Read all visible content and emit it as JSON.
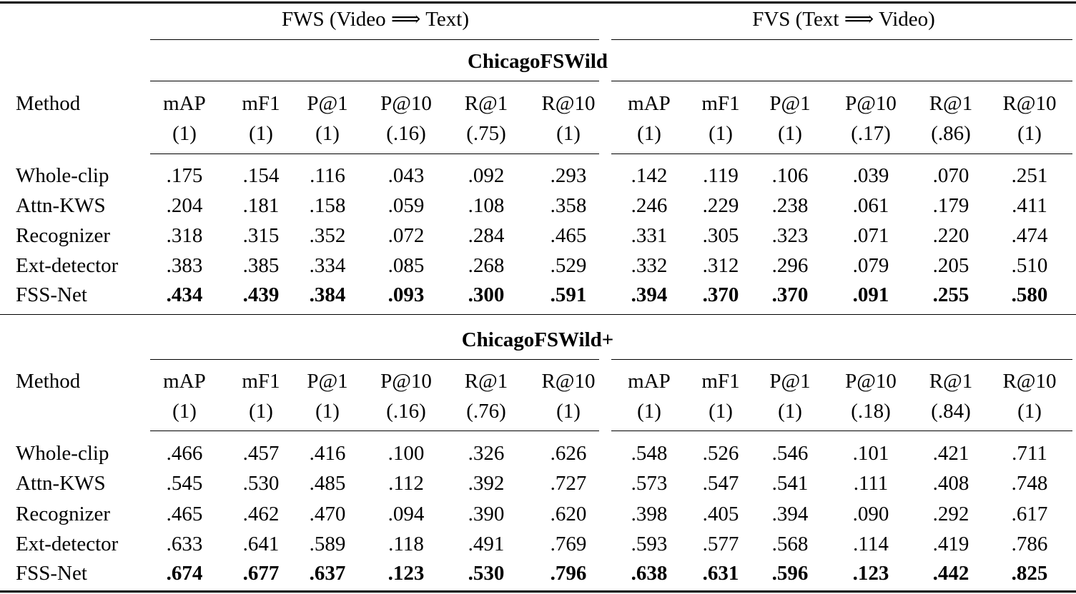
{
  "groups": {
    "fws": "FWS (Video ⟹ Text)",
    "fvs": "FVS (Text ⟹ Video)"
  },
  "method_header": "Method",
  "metrics": [
    "mAP",
    "mF1",
    "P@1",
    "P@10",
    "R@1",
    "R@10"
  ],
  "sections": [
    {
      "title": "ChicagoFSWild",
      "upper_bounds": {
        "fws": [
          "(1)",
          "(1)",
          "(1)",
          "(.16)",
          "(.75)",
          "(1)"
        ],
        "fvs": [
          "(1)",
          "(1)",
          "(1)",
          "(.17)",
          "(.86)",
          "(1)"
        ]
      },
      "rows": [
        {
          "method": "Whole-clip",
          "bold": false,
          "fws": [
            ".175",
            ".154",
            ".116",
            ".043",
            ".092",
            ".293"
          ],
          "fvs": [
            ".142",
            ".119",
            ".106",
            ".039",
            ".070",
            ".251"
          ]
        },
        {
          "method": "Attn-KWS",
          "bold": false,
          "fws": [
            ".204",
            ".181",
            ".158",
            ".059",
            ".108",
            ".358"
          ],
          "fvs": [
            ".246",
            ".229",
            ".238",
            ".061",
            ".179",
            ".411"
          ]
        },
        {
          "method": "Recognizer",
          "bold": false,
          "fws": [
            ".318",
            ".315",
            ".352",
            ".072",
            ".284",
            ".465"
          ],
          "fvs": [
            ".331",
            ".305",
            ".323",
            ".071",
            ".220",
            ".474"
          ]
        },
        {
          "method": "Ext-detector",
          "bold": false,
          "fws": [
            ".383",
            ".385",
            ".334",
            ".085",
            ".268",
            ".529"
          ],
          "fvs": [
            ".332",
            ".312",
            ".296",
            ".079",
            ".205",
            ".510"
          ]
        },
        {
          "method": "FSS-Net",
          "bold": true,
          "fws": [
            ".434",
            ".439",
            ".384",
            ".093",
            ".300",
            ".591"
          ],
          "fvs": [
            ".394",
            ".370",
            ".370",
            ".091",
            ".255",
            ".580"
          ]
        }
      ]
    },
    {
      "title": "ChicagoFSWild+",
      "upper_bounds": {
        "fws": [
          "(1)",
          "(1)",
          "(1)",
          "(.16)",
          "(.76)",
          "(1)"
        ],
        "fvs": [
          "(1)",
          "(1)",
          "(1)",
          "(.18)",
          "(.84)",
          "(1)"
        ]
      },
      "rows": [
        {
          "method": "Whole-clip",
          "bold": false,
          "fws": [
            ".466",
            ".457",
            ".416",
            ".100",
            ".326",
            ".626"
          ],
          "fvs": [
            ".548",
            ".526",
            ".546",
            ".101",
            ".421",
            ".711"
          ]
        },
        {
          "method": "Attn-KWS",
          "bold": false,
          "fws": [
            ".545",
            ".530",
            ".485",
            ".112",
            ".392",
            ".727"
          ],
          "fvs": [
            ".573",
            ".547",
            ".541",
            ".111",
            ".408",
            ".748"
          ]
        },
        {
          "method": "Recognizer",
          "bold": false,
          "fws": [
            ".465",
            ".462",
            ".470",
            ".094",
            ".390",
            ".620"
          ],
          "fvs": [
            ".398",
            ".405",
            ".394",
            ".090",
            ".292",
            ".617"
          ]
        },
        {
          "method": "Ext-detector",
          "bold": false,
          "fws": [
            ".633",
            ".641",
            ".589",
            ".118",
            ".491",
            ".769"
          ],
          "fvs": [
            ".593",
            ".577",
            ".568",
            ".114",
            ".419",
            ".786"
          ]
        },
        {
          "method": "FSS-Net",
          "bold": true,
          "fws": [
            ".674",
            ".677",
            ".637",
            ".123",
            ".530",
            ".796"
          ],
          "fvs": [
            ".638",
            ".631",
            ".596",
            ".123",
            ".442",
            ".825"
          ]
        }
      ]
    }
  ]
}
